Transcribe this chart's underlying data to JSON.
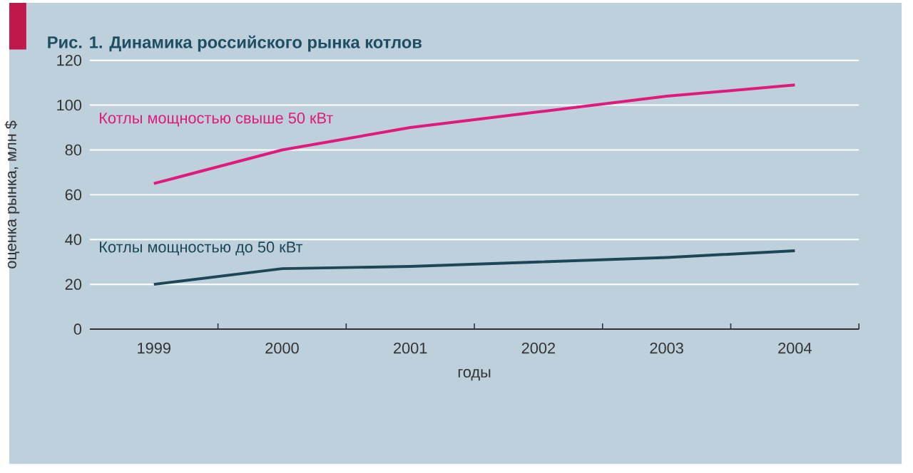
{
  "chart_data": {
    "type": "line",
    "title": "Рис. 1. Динамика российского рынка котлов",
    "xlabel": "годы",
    "ylabel": "оценка рынка, млн $",
    "categories": [
      "1999",
      "2000",
      "2001",
      "2002",
      "2003",
      "2004"
    ],
    "series": [
      {
        "name": "Котлы мощностью свыше 50 кВт",
        "color": "#e0197d",
        "values": [
          65,
          80,
          90,
          97,
          104,
          109
        ]
      },
      {
        "name": "Котлы мощностью до 50 кВт",
        "color": "#1d4656",
        "values": [
          20,
          27,
          28,
          30,
          32,
          35
        ]
      }
    ],
    "ylim": [
      0,
      120
    ],
    "yticks": [
      0,
      20,
      40,
      60,
      80,
      100,
      120
    ],
    "grid": "y",
    "marker": "none",
    "line_style": "solid"
  }
}
